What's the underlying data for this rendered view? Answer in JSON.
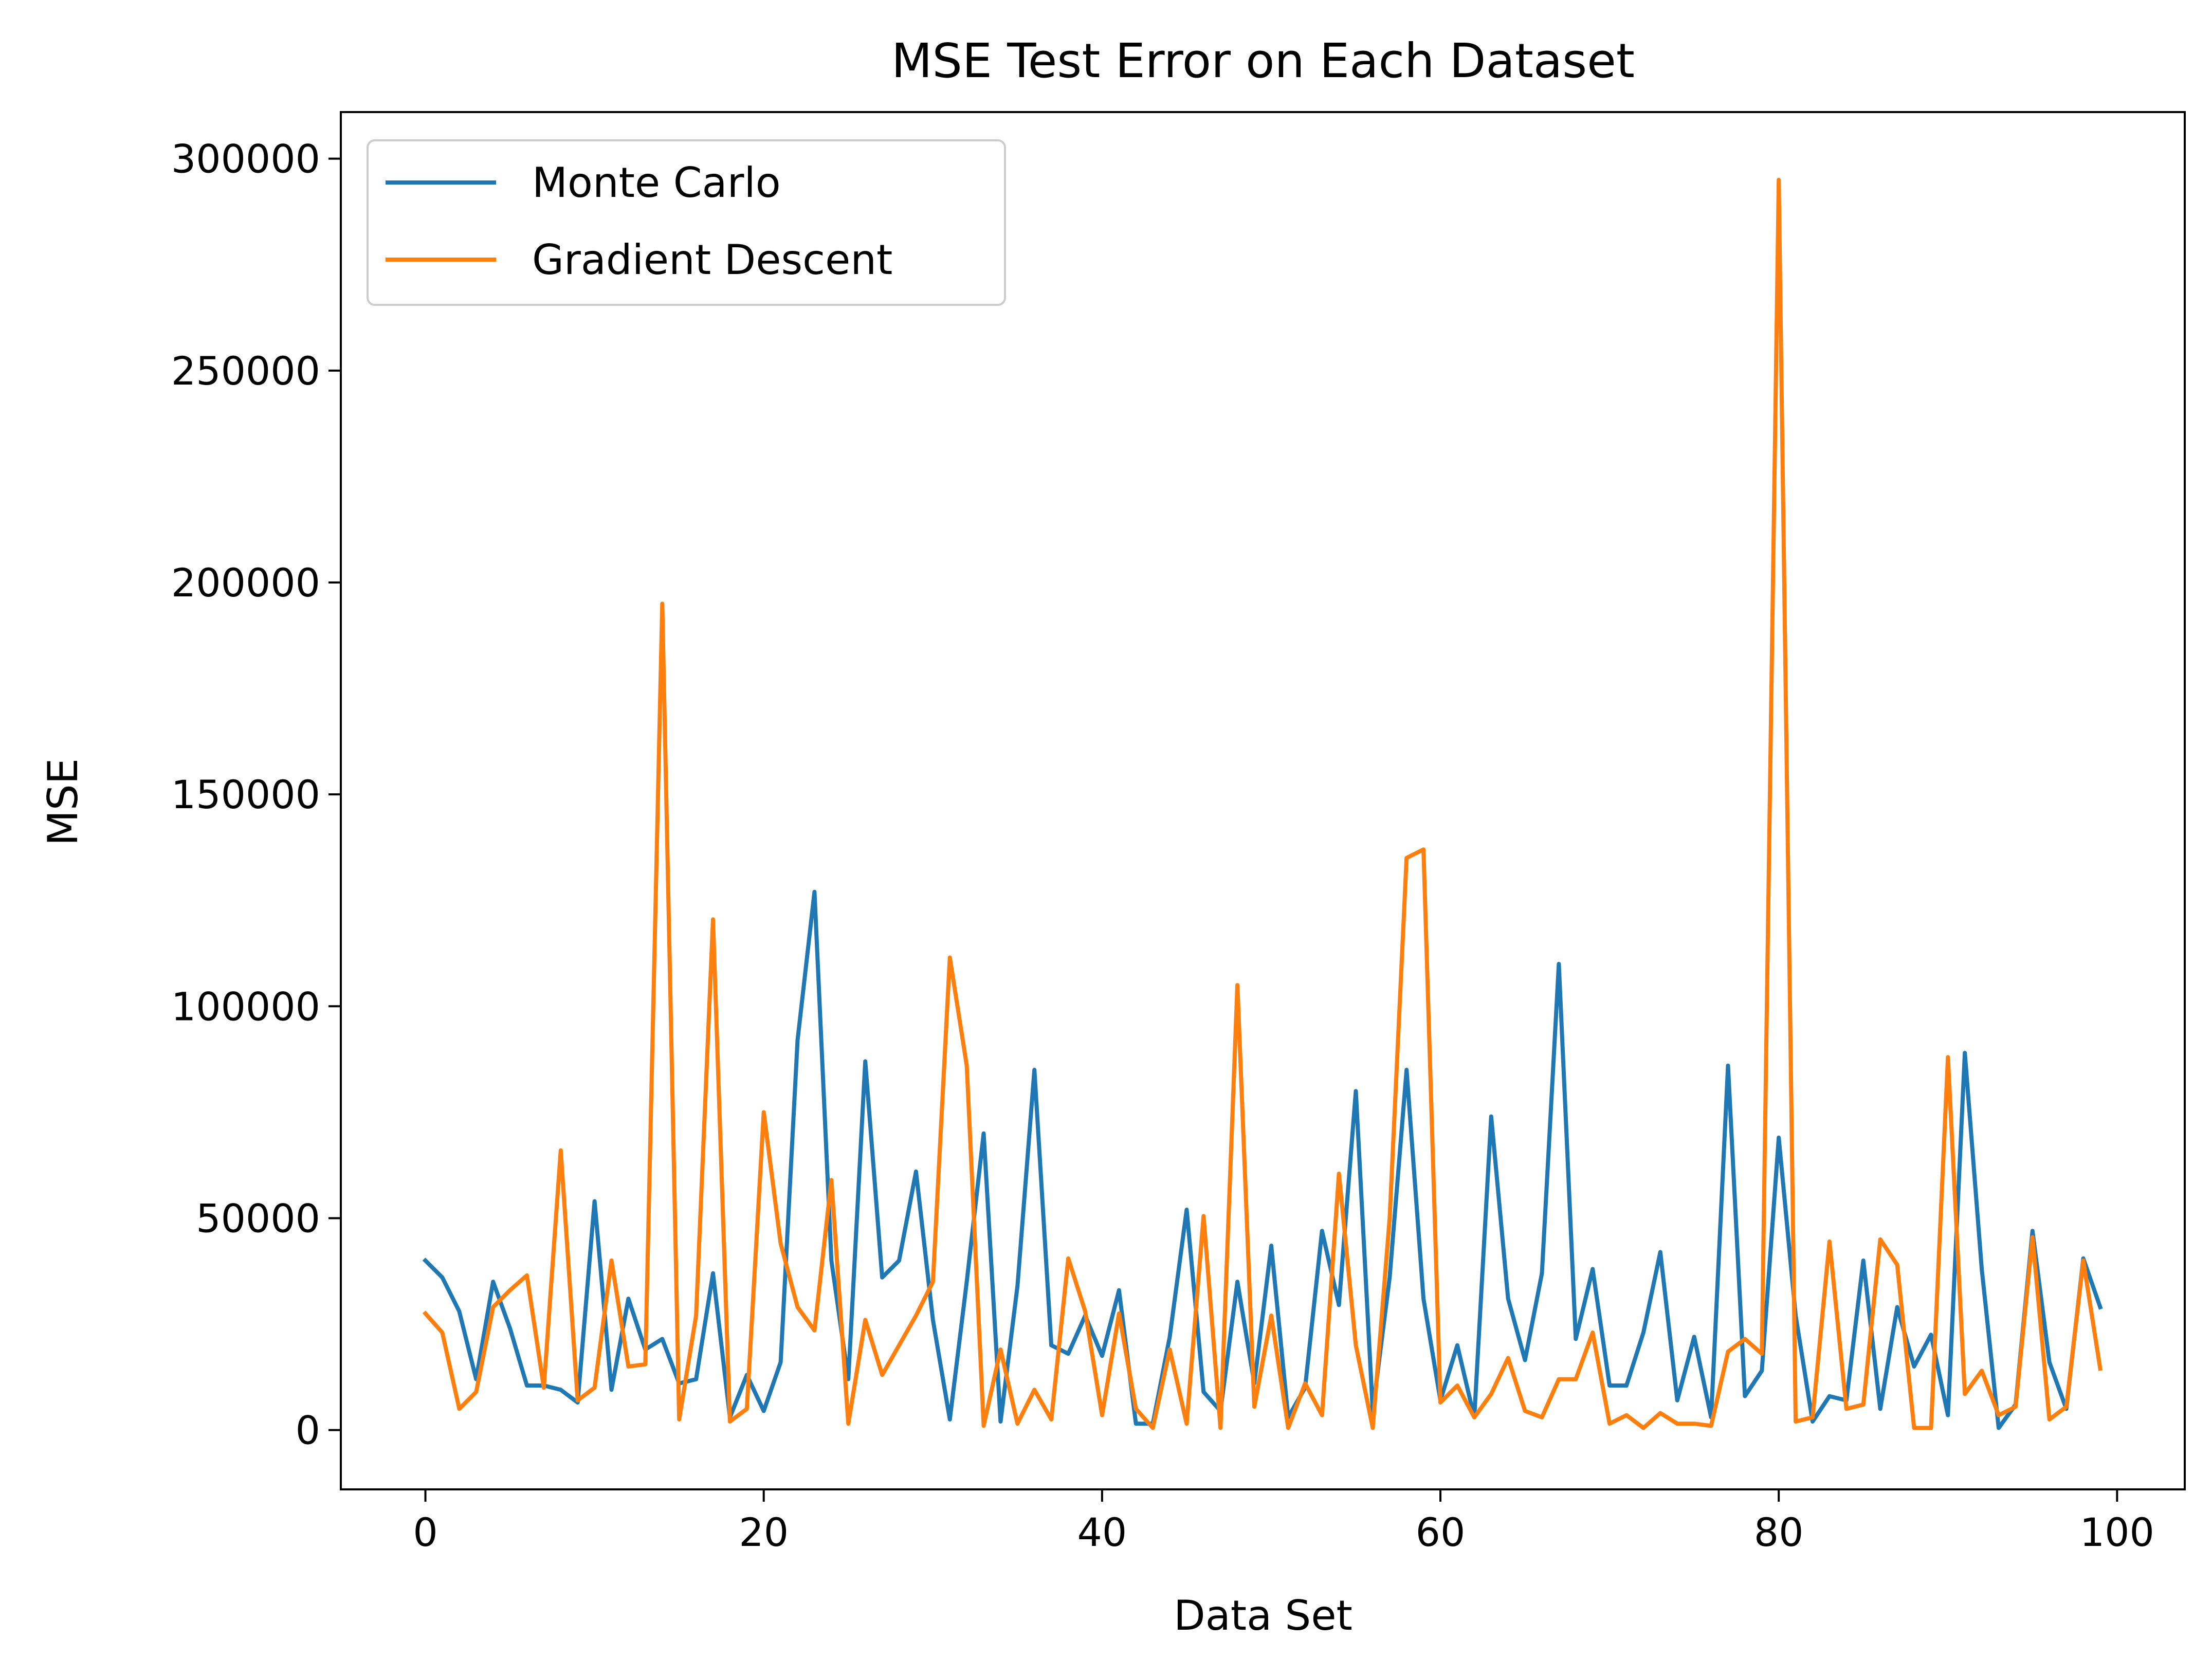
{
  "chart_data": {
    "type": "line",
    "title": "MSE Test Error on Each Dataset",
    "xlabel": "Data Set",
    "ylabel": "MSE",
    "xlim": [
      -5,
      104
    ],
    "ylim": [
      -14000,
      311000
    ],
    "xticks": [
      0,
      20,
      40,
      60,
      80,
      100
    ],
    "xtick_labels": [
      "0",
      "20",
      "40",
      "60",
      "80",
      "100"
    ],
    "yticks": [
      0,
      50000,
      100000,
      150000,
      200000,
      250000,
      300000
    ],
    "ytick_labels": [
      "0",
      "50000",
      "100000",
      "150000",
      "200000",
      "250000",
      "300000"
    ],
    "grid": false,
    "legend_position": "top-left",
    "x": [
      0,
      1,
      2,
      3,
      4,
      5,
      6,
      7,
      8,
      9,
      10,
      11,
      12,
      13,
      14,
      15,
      16,
      17,
      18,
      19,
      20,
      21,
      22,
      23,
      24,
      25,
      26,
      27,
      28,
      29,
      30,
      31,
      32,
      33,
      34,
      35,
      36,
      37,
      38,
      39,
      40,
      41,
      42,
      43,
      44,
      45,
      46,
      47,
      48,
      49,
      50,
      51,
      52,
      53,
      54,
      55,
      56,
      57,
      58,
      59,
      60,
      61,
      62,
      63,
      64,
      65,
      66,
      67,
      68,
      69,
      70,
      71,
      72,
      73,
      74,
      75,
      76,
      77,
      78,
      79,
      80,
      81,
      82,
      83,
      84,
      85,
      86,
      87,
      88,
      89,
      90,
      91,
      92,
      93,
      94,
      95,
      96,
      97,
      98,
      99
    ],
    "series": [
      {
        "name": "Monte Carlo",
        "color": "#1f77b4",
        "values": [
          40000,
          36000,
          28000,
          12000,
          35000,
          24000,
          10500,
          10500,
          9500,
          6500,
          54000,
          9500,
          31000,
          19000,
          21500,
          11000,
          12000,
          37000,
          3000,
          13000,
          4500,
          16000,
          92000,
          127000,
          40000,
          12000,
          87000,
          36000,
          40000,
          61000,
          26000,
          2500,
          35000,
          70000,
          2000,
          34000,
          85000,
          20000,
          18000,
          27000,
          17500,
          33000,
          1500,
          1500,
          22000,
          52000,
          9000,
          4500,
          35000,
          11000,
          43500,
          3000,
          10000,
          47000,
          29500,
          80000,
          4500,
          36000,
          85000,
          31000,
          7000,
          20000,
          3000,
          74000,
          31000,
          16500,
          37000,
          110000,
          21500,
          38000,
          10500,
          10500,
          23000,
          42000,
          7000,
          22000,
          3000,
          86000,
          8000,
          14000,
          69000,
          27000,
          2000,
          8000,
          7000,
          40000,
          5000,
          29000,
          15000,
          22500,
          3500,
          89000,
          38000,
          500,
          6000,
          47000,
          16000,
          5000,
          40500,
          29000
        ]
      },
      {
        "name": "Gradient Descent",
        "color": "#ff7f0e",
        "values": [
          27500,
          23000,
          5000,
          9000,
          29000,
          33000,
          36500,
          10000,
          66000,
          7000,
          10000,
          40000,
          15000,
          15500,
          195000,
          2500,
          27000,
          120500,
          2000,
          5000,
          75000,
          44000,
          29000,
          23500,
          59000,
          1500,
          26000,
          13000,
          20000,
          27000,
          35000,
          111500,
          86000,
          1000,
          19000,
          1500,
          9500,
          2500,
          40500,
          28000,
          3500,
          27500,
          5000,
          500,
          19000,
          1500,
          50500,
          500,
          105000,
          5500,
          27000,
          500,
          11000,
          3500,
          60500,
          20000,
          500,
          50000,
          135000,
          137000,
          6500,
          10500,
          3000,
          8500,
          17000,
          4500,
          3000,
          12000,
          12000,
          23000,
          1500,
          3500,
          500,
          4000,
          1500,
          1500,
          1000,
          18500,
          21500,
          18000,
          295000,
          2000,
          3000,
          44500,
          5000,
          6000,
          45000,
          39000,
          500,
          500,
          88000,
          8500,
          14000,
          3500,
          5500,
          45500,
          2500,
          5500,
          40000,
          14500
        ]
      }
    ]
  }
}
